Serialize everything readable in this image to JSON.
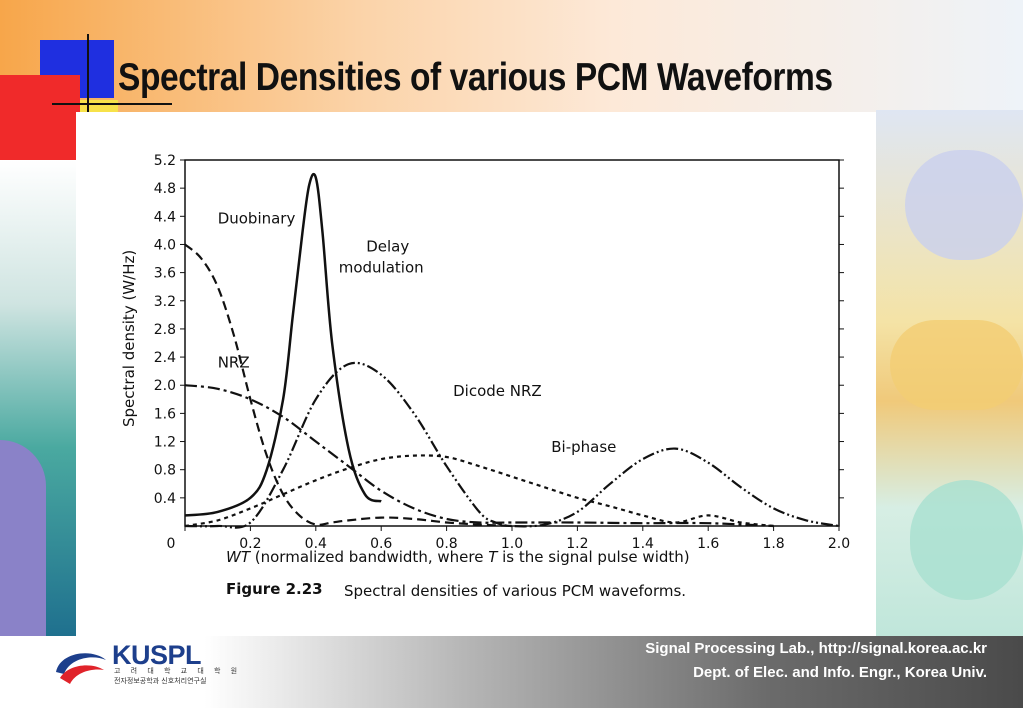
{
  "slide": {
    "title": "Spectral Densities of various PCM Waveforms"
  },
  "figure": {
    "caption_number": "Figure 2.23",
    "caption_text": "Spectral densities of various PCM waveforms."
  },
  "footer": {
    "logo_name": "KUSPL",
    "logo_sub1": "고 려 대 학 교 대 학 원",
    "logo_sub2": "전자정보공학과 신호처리연구실",
    "line1": "Signal Processing Lab., http://signal.korea.ac.kr",
    "line2": "Dept. of Elec. and Info. Engr., Korea Univ."
  },
  "chart_data": {
    "type": "line",
    "title": "",
    "xlabel_italic": "WT",
    "xlabel_rest": " (normalized bandwidth, where ",
    "xlabel_T": "T",
    "xlabel_end": " is the signal pulse width)",
    "ylabel": "Spectral density (W/Hz)",
    "xlim": [
      0,
      2.0
    ],
    "ylim": [
      0,
      5.2
    ],
    "x_ticks": [
      "0",
      "0.2",
      "0.4",
      "0.6",
      "0.8",
      "1.0",
      "1.2",
      "1.4",
      "1.6",
      "1.8",
      "2.0"
    ],
    "y_ticks": [
      "0.4",
      "0.8",
      "1.2",
      "1.6",
      "2.0",
      "2.4",
      "2.8",
      "3.2",
      "3.6",
      "4.0",
      "4.4",
      "4.8",
      "5.2"
    ],
    "grid": false,
    "series": [
      {
        "name": "Duobinary",
        "dash": "dashed",
        "x": [
          0,
          0.05,
          0.1,
          0.15,
          0.2,
          0.25,
          0.3,
          0.35,
          0.4,
          0.45,
          0.5,
          0.6,
          0.7,
          0.8,
          0.9,
          1.0
        ],
        "y": [
          4.0,
          3.8,
          3.4,
          2.7,
          1.8,
          1.0,
          0.45,
          0.15,
          0.02,
          0.05,
          0.08,
          0.12,
          0.1,
          0.05,
          0.02,
          0.0
        ]
      },
      {
        "name": "Delay modulation",
        "dash": "solid",
        "x": [
          0,
          0.1,
          0.2,
          0.25,
          0.3,
          0.33,
          0.36,
          0.38,
          0.4,
          0.42,
          0.45,
          0.5,
          0.55,
          0.6
        ],
        "y": [
          0.15,
          0.2,
          0.4,
          0.8,
          1.8,
          3.0,
          4.2,
          4.85,
          4.95,
          4.2,
          2.6,
          1.1,
          0.45,
          0.35
        ]
      },
      {
        "name": "NRZ",
        "dash": "dash-dot",
        "x": [
          0,
          0.1,
          0.2,
          0.3,
          0.4,
          0.5,
          0.6,
          0.7,
          0.8,
          0.9,
          1.0,
          1.2,
          1.4,
          1.6,
          1.8
        ],
        "y": [
          2.0,
          1.95,
          1.8,
          1.55,
          1.2,
          0.85,
          0.5,
          0.25,
          0.1,
          0.05,
          0.05,
          0.05,
          0.04,
          0.04,
          0.0
        ]
      },
      {
        "name": "Dicode NRZ",
        "dash": "dash-dot-dot",
        "x": [
          0,
          0.1,
          0.2,
          0.3,
          0.4,
          0.5,
          0.6,
          0.7,
          0.8,
          0.9,
          0.95,
          1.0,
          1.1,
          1.2,
          1.3,
          1.4,
          1.5,
          1.6,
          1.7,
          1.8,
          1.9,
          2.0
        ],
        "y": [
          0.0,
          0.0,
          0.05,
          0.8,
          1.8,
          2.3,
          2.15,
          1.6,
          0.85,
          0.2,
          0.05,
          0.0,
          0.02,
          0.2,
          0.6,
          0.95,
          1.1,
          0.9,
          0.55,
          0.25,
          0.08,
          0.0
        ]
      },
      {
        "name": "Bi-phase",
        "dash": "dotted",
        "x": [
          0,
          0.1,
          0.2,
          0.3,
          0.4,
          0.5,
          0.6,
          0.7,
          0.8,
          0.9,
          1.0,
          1.1,
          1.2,
          1.3,
          1.4,
          1.5,
          1.6,
          1.7,
          1.8
        ],
        "y": [
          0.0,
          0.08,
          0.25,
          0.45,
          0.65,
          0.82,
          0.95,
          1.0,
          0.98,
          0.85,
          0.7,
          0.55,
          0.4,
          0.28,
          0.15,
          0.05,
          0.15,
          0.05,
          0.0
        ]
      }
    ]
  }
}
